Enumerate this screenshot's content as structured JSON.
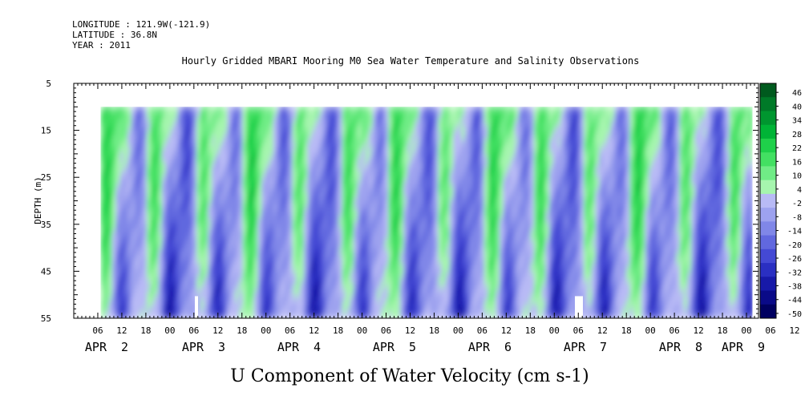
{
  "header": {
    "longitude": "LONGITUDE : 121.9W(-121.9)",
    "latitude": "LATITUDE : 36.8N",
    "year": "YEAR : 2011"
  },
  "chart_data": {
    "type": "heatmap",
    "title": "Hourly Gridded MBARI Mooring M0 Sea Water Temperature and Salinity Observations",
    "subtitle": "U Component of Water Velocity (cm s-1)",
    "ylabel": "DEPTH (m)",
    "xlabel": "",
    "ylim": [
      5,
      55
    ],
    "y_inverted": true,
    "y_ticks": [
      "5",
      "15",
      "25",
      "35",
      "45",
      "55"
    ],
    "x_hour_ticks": [
      "06",
      "12",
      "18",
      "00",
      "06",
      "12",
      "18",
      "00",
      "06",
      "12",
      "18",
      "00",
      "06",
      "12",
      "18",
      "00",
      "06",
      "12",
      "18",
      "00",
      "06",
      "12",
      "18",
      "00",
      "06",
      "12",
      "18",
      "00",
      "06",
      "12",
      "18",
      "00"
    ],
    "x_day_labels": [
      "APR  2",
      "APR  3",
      "APR  4",
      "APR  5",
      "APR  6",
      "APR  7",
      "APR  8",
      "APR  9"
    ],
    "x_range_hours": {
      "start": "APR 2 00:00",
      "end": "APR 9 03:00"
    },
    "data_depth_range": [
      10,
      55
    ],
    "colorbar": {
      "levels": [
        "46",
        "40",
        "34",
        "28",
        "22",
        "16",
        "10",
        "4",
        "-2",
        "-8",
        "-14",
        "-20",
        "-26",
        "-32",
        "-38",
        "-44",
        "-50"
      ],
      "colors": [
        "#005a1e",
        "#007a28",
        "#00962f",
        "#00b436",
        "#1fd04a",
        "#43e062",
        "#70ec86",
        "#a6f5ae",
        "#b8baf5",
        "#9da2ef",
        "#8087e8",
        "#6168df",
        "#4449d4",
        "#2a2fc2",
        "#1719a8",
        "#0a0a88",
        "#000060"
      ]
    },
    "legend": "right"
  }
}
